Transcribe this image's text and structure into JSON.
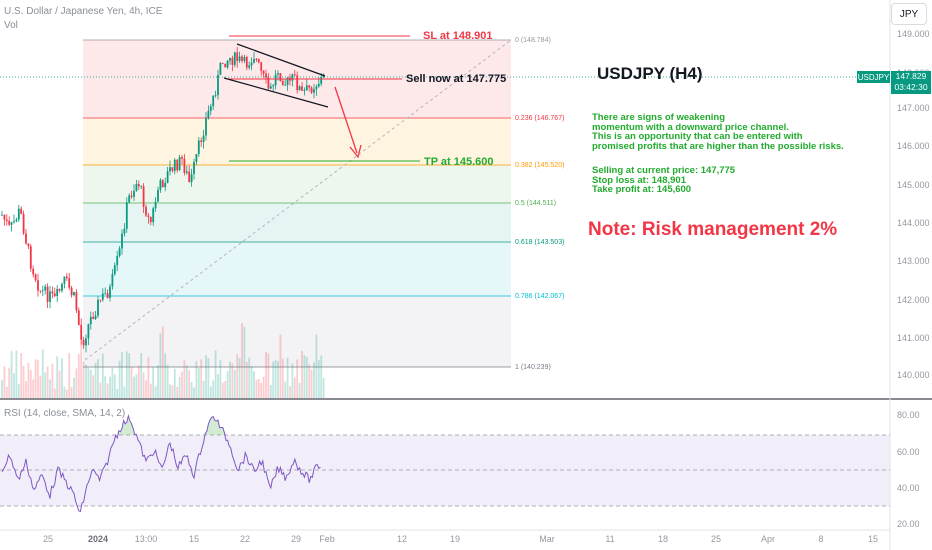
{
  "header": {
    "symbol_description": "U.S. Dollar / Japanese Yen, 4h, ICE",
    "volume_label": "Vol",
    "currency_button": "JPY"
  },
  "price_axis": {
    "ticks": [
      "149.000",
      "148.000",
      "147.000",
      "146.000",
      "145.000",
      "144.000",
      "143.000",
      "142.000",
      "141.000",
      "140.000"
    ],
    "current_symbol": "USDJPY",
    "current_price": "147.829",
    "countdown": "03:42:30",
    "tag_color": "#089981"
  },
  "rsi_panel": {
    "label": "RSI (14, close, SMA, 14, 2)",
    "ticks": [
      "80.00",
      "60.00",
      "40.00",
      "20.00"
    ]
  },
  "time_axis": {
    "labels": [
      "25",
      "2024",
      "13:00",
      "15",
      "22",
      "29",
      "Feb",
      "12",
      "19",
      "Mar",
      "11",
      "18",
      "25",
      "Apr",
      "8",
      "15"
    ]
  },
  "fibonacci": {
    "levels": [
      {
        "label": "0 (148.784)",
        "color": "#9598a1"
      },
      {
        "label": "0.236 (146.767)",
        "color": "#f23645"
      },
      {
        "label": "0.382 (145.520)",
        "color": "#ff9800"
      },
      {
        "label": "0.5 (144.511)",
        "color": "#4caf50"
      },
      {
        "label": "0.618 (143.503)",
        "color": "#089981"
      },
      {
        "label": "0.786 (142.067)",
        "color": "#00bcd4"
      },
      {
        "label": "1 (140.239)",
        "color": "#787b86"
      }
    ]
  },
  "annotations": {
    "stop_loss": "SL at 148.901",
    "sell_now": "Sell now at 147.775",
    "take_profit": "TP at 145.600",
    "title": "USDJPY (H4)",
    "note": "Note: Risk management 2%",
    "description_lines": [
      "There are signs of weakening",
      "momentum with a downward price channel.",
      "This is an opportunity that can be entered with",
      "promised profits that are higher than the possible risks."
    ],
    "trade_lines": [
      "Selling at current price: 147,775",
      "Stop loss at: 148,901",
      "Take profit at: 145,600"
    ]
  },
  "colors": {
    "up_candle": "#089981",
    "down_candle": "#f23645",
    "stop_loss": "#f23645",
    "take_profit": "#22ab2e",
    "note": "#f23645",
    "rsi_line": "#7e57c2"
  }
}
